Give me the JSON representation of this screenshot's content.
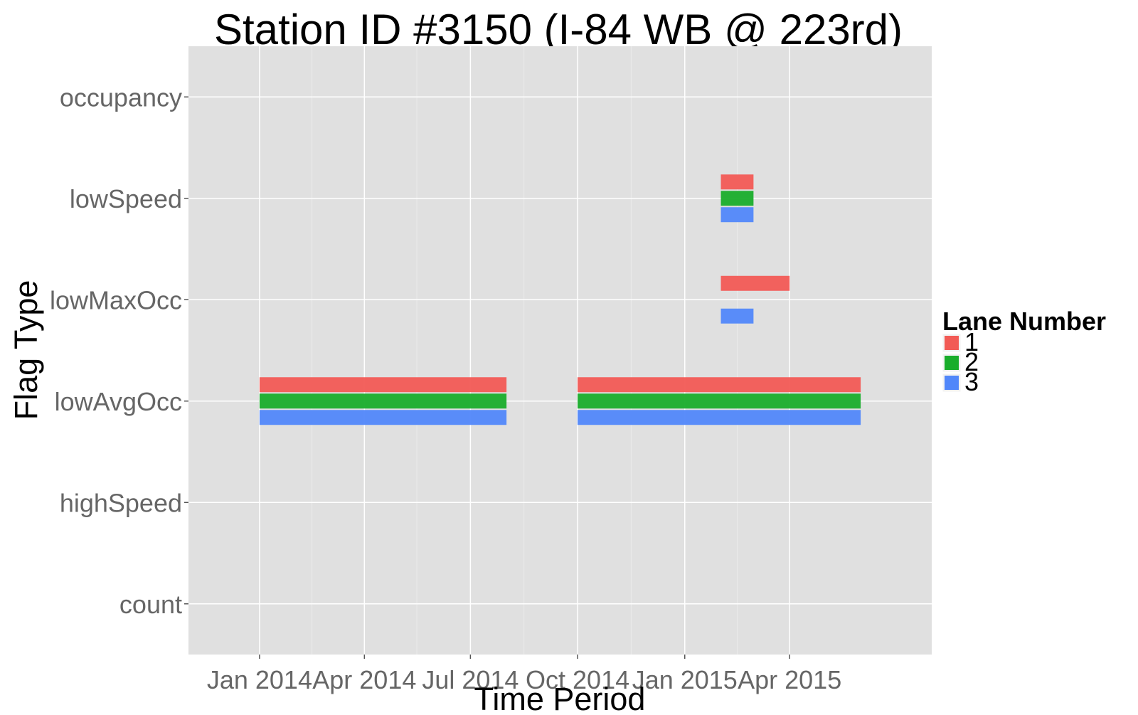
{
  "chart_data": {
    "type": "timeline",
    "title": "Station ID #3150 (I-84 WB @ 223rd)",
    "xlabel": "Time Period",
    "ylabel": "Flag Type",
    "xlim": [
      "2013-11-01",
      "2015-08-01"
    ],
    "x_ticks": [
      {
        "date": "2014-01-01",
        "label": "Jan 2014"
      },
      {
        "date": "2014-04-01",
        "label": "Apr 2014"
      },
      {
        "date": "2014-07-01",
        "label": "Jul 2014"
      },
      {
        "date": "2014-10-01",
        "label": "Oct 2014"
      },
      {
        "date": "2015-01-01",
        "label": "Jan 2015"
      },
      {
        "date": "2015-04-01",
        "label": "Apr 2015"
      }
    ],
    "x_minor_ticks": [
      "2014-02-15",
      "2014-05-16",
      "2014-08-16",
      "2014-11-16",
      "2015-02-15"
    ],
    "categories": [
      "count",
      "highSpeed",
      "lowAvgOcc",
      "lowMaxOcc",
      "lowSpeed",
      "occupancy"
    ],
    "legend": {
      "title": "Lane Number",
      "position": "right",
      "items": [
        {
          "label": "1",
          "color": "#F25A55"
        },
        {
          "label": "2",
          "color": "#19AD2B"
        },
        {
          "label": "3",
          "color": "#5187FA"
        }
      ]
    },
    "grid": true,
    "series": [
      {
        "name": "1",
        "color": "#F25A55",
        "segments": [
          {
            "category": "lowAvgOcc",
            "start": "2014-01-01",
            "end": "2014-08-01"
          },
          {
            "category": "lowAvgOcc",
            "start": "2014-10-01",
            "end": "2015-06-01"
          },
          {
            "category": "lowMaxOcc",
            "start": "2015-02-01",
            "end": "2015-04-01"
          },
          {
            "category": "lowSpeed",
            "start": "2015-02-01",
            "end": "2015-03-01"
          }
        ]
      },
      {
        "name": "2",
        "color": "#19AD2B",
        "segments": [
          {
            "category": "lowAvgOcc",
            "start": "2014-01-01",
            "end": "2014-08-01"
          },
          {
            "category": "lowAvgOcc",
            "start": "2014-10-01",
            "end": "2015-06-01"
          },
          {
            "category": "lowSpeed",
            "start": "2015-02-01",
            "end": "2015-03-01"
          }
        ]
      },
      {
        "name": "3",
        "color": "#5187FA",
        "segments": [
          {
            "category": "lowAvgOcc",
            "start": "2014-01-01",
            "end": "2014-08-01"
          },
          {
            "category": "lowAvgOcc",
            "start": "2014-10-01",
            "end": "2015-06-01"
          },
          {
            "category": "lowMaxOcc",
            "start": "2015-02-01",
            "end": "2015-03-01"
          },
          {
            "category": "lowSpeed",
            "start": "2015-02-01",
            "end": "2015-03-01"
          }
        ]
      }
    ]
  }
}
